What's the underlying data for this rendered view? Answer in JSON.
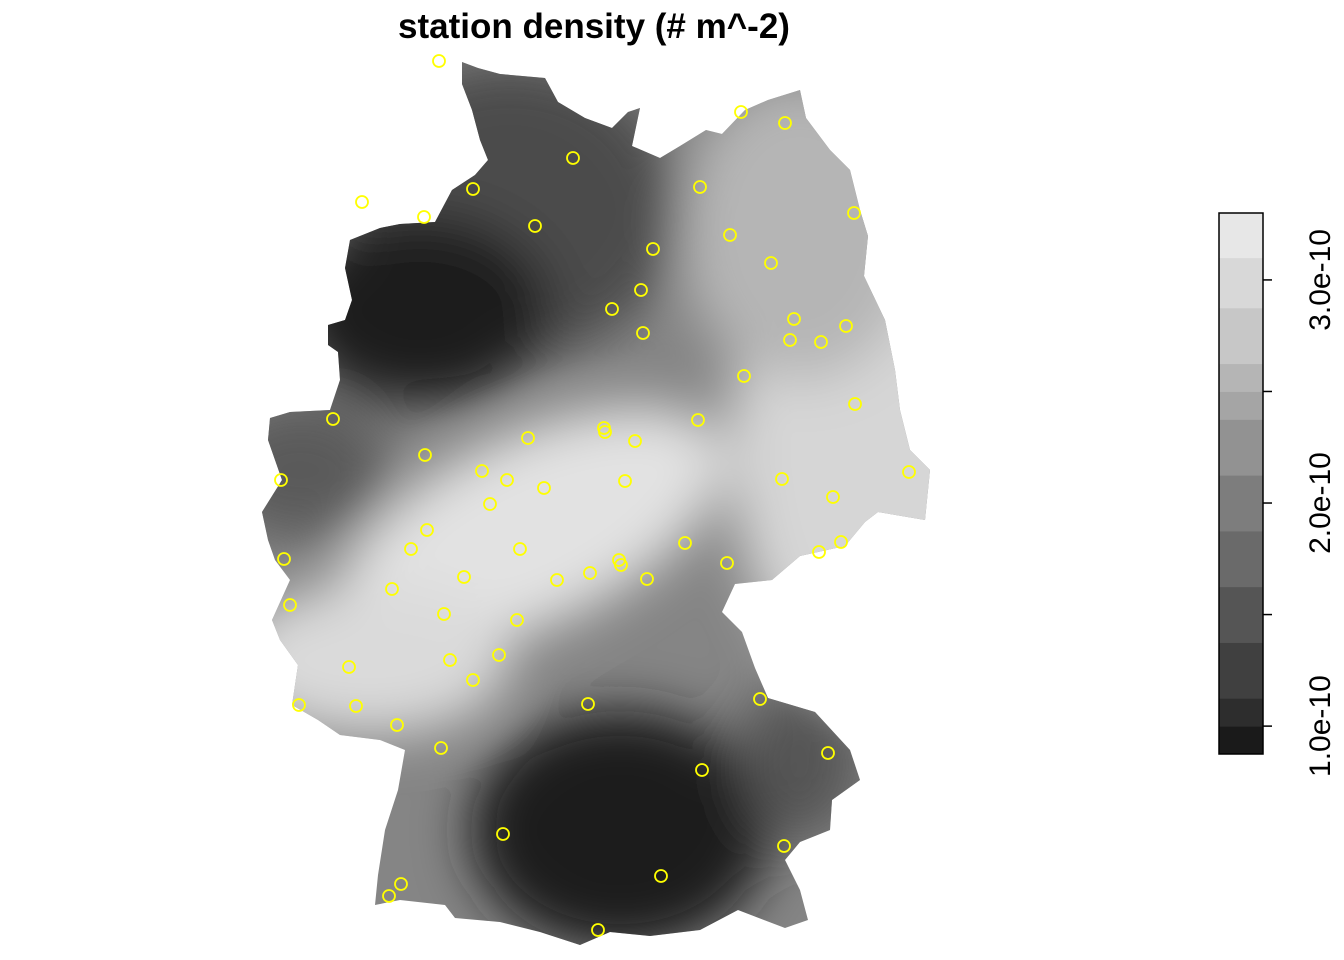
{
  "title": "station density (# m^-2)",
  "colorbar": {
    "ticks": [
      {
        "value": 1e-10,
        "label": "1.0e-10"
      },
      {
        "value": 1.5e-10,
        "label": ""
      },
      {
        "value": 2e-10,
        "label": "2.0e-10"
      },
      {
        "value": 2.5e-10,
        "label": ""
      },
      {
        "value": 3e-10,
        "label": "3.0e-10"
      }
    ],
    "breaks": [
      8.75e-11,
      1e-10,
      1.125e-10,
      1.375e-10,
      1.625e-10,
      1.875e-10,
      2.125e-10,
      2.375e-10,
      2.5e-10,
      2.625e-10,
      2.875e-10,
      3.1e-10,
      3.3e-10
    ],
    "colors": [
      "#1a1a1a",
      "#2d2d2d",
      "#404040",
      "#555555",
      "#6a6a6a",
      "#7d7d7d",
      "#929292",
      "#a5a5a5",
      "#b5b5b5",
      "#c7c7c7",
      "#d8d8d8",
      "#e7e7e7"
    ]
  },
  "legend_position": "right",
  "marker_color": "#ffff00",
  "country_outline": "Germany"
}
